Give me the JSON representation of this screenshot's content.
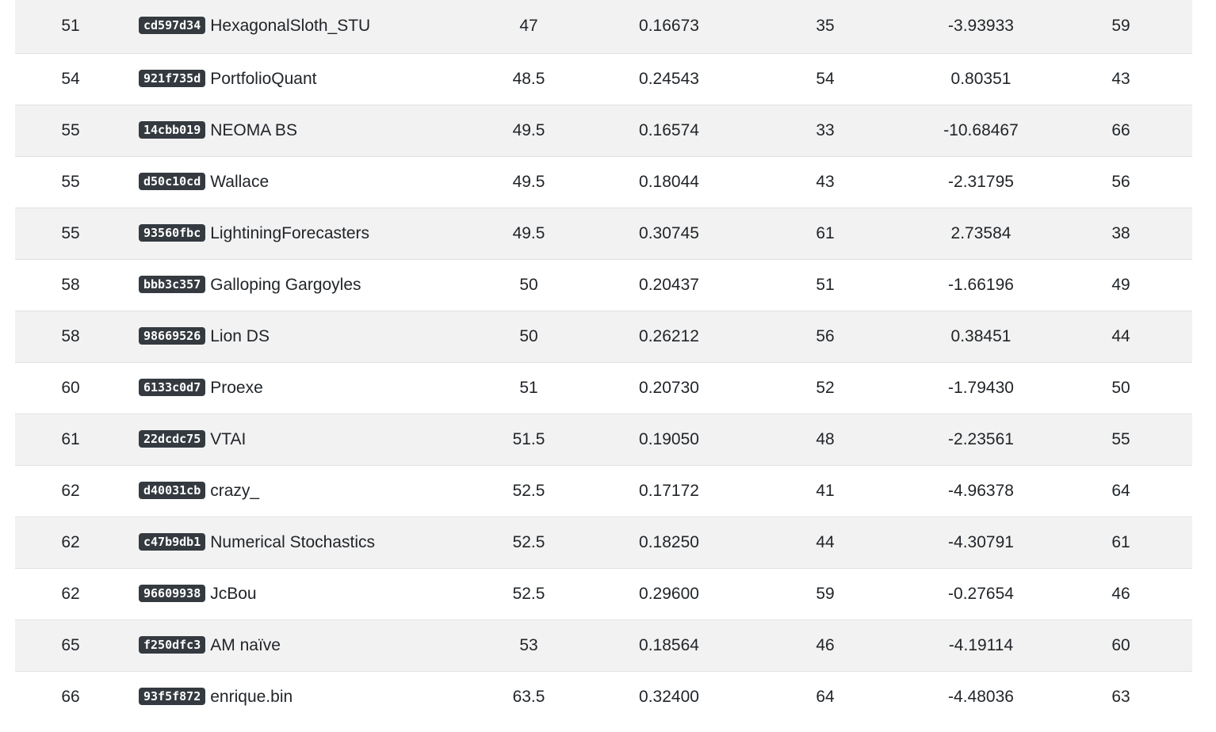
{
  "leaderboard": {
    "rows": [
      {
        "rank": "51",
        "hash": "cd597d34",
        "team": "HexagonalSloth_STU",
        "score": "47",
        "m1": "0.16673",
        "m2": "35",
        "m3": "-3.93933",
        "m4": "59"
      },
      {
        "rank": "54",
        "hash": "921f735d",
        "team": "PortfolioQuant",
        "score": "48.5",
        "m1": "0.24543",
        "m2": "54",
        "m3": "0.80351",
        "m4": "43"
      },
      {
        "rank": "55",
        "hash": "14cbb019",
        "team": "NEOMA BS",
        "score": "49.5",
        "m1": "0.16574",
        "m2": "33",
        "m3": "-10.68467",
        "m4": "66"
      },
      {
        "rank": "55",
        "hash": "d50c10cd",
        "team": "Wallace",
        "score": "49.5",
        "m1": "0.18044",
        "m2": "43",
        "m3": "-2.31795",
        "m4": "56"
      },
      {
        "rank": "55",
        "hash": "93560fbc",
        "team": "LightiningForecasters",
        "score": "49.5",
        "m1": "0.30745",
        "m2": "61",
        "m3": "2.73584",
        "m4": "38"
      },
      {
        "rank": "58",
        "hash": "bbb3c357",
        "team": "Galloping Gargoyles",
        "score": "50",
        "m1": "0.20437",
        "m2": "51",
        "m3": "-1.66196",
        "m4": "49"
      },
      {
        "rank": "58",
        "hash": "98669526",
        "team": "Lion DS",
        "score": "50",
        "m1": "0.26212",
        "m2": "56",
        "m3": "0.38451",
        "m4": "44"
      },
      {
        "rank": "60",
        "hash": "6133c0d7",
        "team": "Proexe",
        "score": "51",
        "m1": "0.20730",
        "m2": "52",
        "m3": "-1.79430",
        "m4": "50"
      },
      {
        "rank": "61",
        "hash": "22dcdc75",
        "team": "VTAI",
        "score": "51.5",
        "m1": "0.19050",
        "m2": "48",
        "m3": "-2.23561",
        "m4": "55"
      },
      {
        "rank": "62",
        "hash": "d40031cb",
        "team": "crazy_",
        "score": "52.5",
        "m1": "0.17172",
        "m2": "41",
        "m3": "-4.96378",
        "m4": "64"
      },
      {
        "rank": "62",
        "hash": "c47b9db1",
        "team": "Numerical Stochastics",
        "score": "52.5",
        "m1": "0.18250",
        "m2": "44",
        "m3": "-4.30791",
        "m4": "61"
      },
      {
        "rank": "62",
        "hash": "96609938",
        "team": "JcBou",
        "score": "52.5",
        "m1": "0.29600",
        "m2": "59",
        "m3": "-0.27654",
        "m4": "46"
      },
      {
        "rank": "65",
        "hash": "f250dfc3",
        "team": "AM naïve",
        "score": "53",
        "m1": "0.18564",
        "m2": "46",
        "m3": "-4.19114",
        "m4": "60"
      },
      {
        "rank": "66",
        "hash": "93f5f872",
        "team": "enrique.bin",
        "score": "63.5",
        "m1": "0.32400",
        "m2": "64",
        "m3": "-4.48036",
        "m4": "63"
      }
    ]
  }
}
